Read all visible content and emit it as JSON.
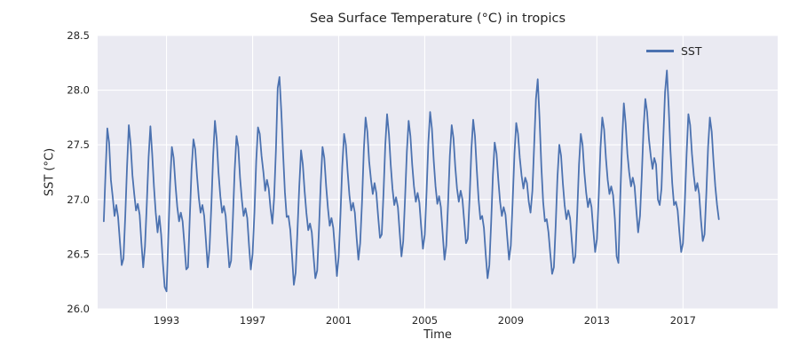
{
  "colors": {
    "line": "#4c72b0",
    "axes_background": "#eaeaf2",
    "grid": "#ffffff",
    "text": "#262626",
    "figure_background": "#ffffff"
  },
  "chart_data": {
    "type": "line",
    "title": "Sea Surface Temperature (°C) in tropics",
    "xlabel": "Time",
    "ylabel": "SST (°C)",
    "xlim": [
      1989.8,
      2021.4
    ],
    "ylim": [
      26.0,
      28.5
    ],
    "grid": true,
    "legend_position": "upper right",
    "xticks": [
      {
        "v": 1993,
        "label": "1993"
      },
      {
        "v": 1997,
        "label": "1997"
      },
      {
        "v": 2001,
        "label": "2001"
      },
      {
        "v": 2005,
        "label": "2005"
      },
      {
        "v": 2009,
        "label": "2009"
      },
      {
        "v": 2013,
        "label": "2013"
      },
      {
        "v": 2017,
        "label": "2017"
      }
    ],
    "yticks": [
      {
        "v": 26.0,
        "label": "26.0"
      },
      {
        "v": 26.5,
        "label": "26.5"
      },
      {
        "v": 27.0,
        "label": "27.0"
      },
      {
        "v": 27.5,
        "label": "27.5"
      },
      {
        "v": 28.0,
        "label": "28.0"
      },
      {
        "v": 28.5,
        "label": "28.5"
      }
    ],
    "series": [
      {
        "name": "SST",
        "unit": "°C",
        "cadence": "monthly",
        "x_start_year": 1990.0833,
        "x_step_years": 0.0833333,
        "values": [
          26.8,
          27.25,
          27.65,
          27.52,
          27.18,
          27.02,
          26.85,
          26.95,
          26.84,
          26.62,
          26.4,
          26.46,
          26.85,
          27.3,
          27.68,
          27.5,
          27.22,
          27.05,
          26.9,
          26.96,
          26.86,
          26.6,
          26.38,
          26.57,
          26.95,
          27.39,
          27.67,
          27.42,
          27.12,
          26.88,
          26.7,
          26.85,
          26.68,
          26.42,
          26.2,
          26.16,
          26.66,
          27.15,
          27.48,
          27.38,
          27.13,
          26.93,
          26.8,
          26.88,
          26.8,
          26.58,
          26.36,
          26.38,
          26.84,
          27.28,
          27.55,
          27.46,
          27.22,
          27.02,
          26.88,
          26.95,
          26.85,
          26.62,
          26.38,
          26.55,
          26.95,
          27.4,
          27.72,
          27.55,
          27.25,
          27.03,
          26.88,
          26.94,
          26.85,
          26.6,
          26.38,
          26.44,
          26.82,
          27.26,
          27.58,
          27.48,
          27.2,
          27.0,
          26.85,
          26.92,
          26.83,
          26.58,
          26.36,
          26.5,
          26.88,
          27.35,
          27.66,
          27.6,
          27.4,
          27.25,
          27.08,
          27.18,
          27.1,
          26.92,
          26.78,
          27.02,
          27.45,
          28.02,
          28.12,
          27.8,
          27.42,
          27.07,
          26.84,
          26.85,
          26.72,
          26.48,
          26.22,
          26.33,
          26.7,
          27.12,
          27.45,
          27.32,
          27.08,
          26.88,
          26.72,
          26.78,
          26.7,
          26.48,
          26.28,
          26.35,
          26.73,
          27.15,
          27.48,
          27.38,
          27.12,
          26.92,
          26.76,
          26.83,
          26.74,
          26.52,
          26.3,
          26.48,
          26.86,
          27.3,
          27.6,
          27.5,
          27.25,
          27.04,
          26.9,
          26.97,
          26.88,
          26.65,
          26.45,
          26.6,
          26.98,
          27.45,
          27.75,
          27.62,
          27.35,
          27.18,
          27.05,
          27.15,
          27.06,
          26.85,
          26.65,
          26.68,
          27.06,
          27.5,
          27.78,
          27.6,
          27.32,
          27.1,
          26.95,
          27.02,
          26.93,
          26.7,
          26.48,
          26.62,
          27.0,
          27.44,
          27.72,
          27.58,
          27.32,
          27.12,
          26.98,
          27.06,
          26.97,
          26.75,
          26.55,
          26.68,
          27.07,
          27.52,
          27.8,
          27.65,
          27.35,
          27.12,
          26.96,
          27.03,
          26.93,
          26.68,
          26.45,
          26.58,
          26.96,
          27.4,
          27.68,
          27.56,
          27.3,
          27.1,
          26.98,
          27.08,
          27.0,
          26.8,
          26.6,
          26.64,
          27.02,
          27.46,
          27.73,
          27.58,
          27.28,
          27.0,
          26.82,
          26.85,
          26.74,
          26.5,
          26.28,
          26.4,
          26.78,
          27.22,
          27.52,
          27.42,
          27.18,
          26.98,
          26.85,
          26.93,
          26.86,
          26.65,
          26.45,
          26.58,
          26.97,
          27.42,
          27.7,
          27.6,
          27.38,
          27.22,
          27.1,
          27.2,
          27.15,
          26.98,
          26.88,
          27.08,
          27.5,
          27.92,
          28.1,
          27.75,
          27.3,
          26.98,
          26.8,
          26.82,
          26.7,
          26.5,
          26.32,
          26.38,
          26.76,
          27.2,
          27.5,
          27.4,
          27.15,
          26.95,
          26.82,
          26.9,
          26.83,
          26.62,
          26.42,
          26.48,
          26.88,
          27.32,
          27.6,
          27.5,
          27.25,
          27.06,
          26.93,
          27.01,
          26.93,
          26.72,
          26.52,
          26.64,
          27.03,
          27.47,
          27.75,
          27.64,
          27.38,
          27.18,
          27.05,
          27.12,
          27.04,
          26.82,
          26.48,
          26.42,
          27.0,
          27.52,
          27.88,
          27.7,
          27.42,
          27.25,
          27.12,
          27.2,
          27.12,
          26.9,
          26.7,
          26.85,
          27.22,
          27.65,
          27.92,
          27.8,
          27.55,
          27.4,
          27.28,
          27.38,
          27.32,
          27.0,
          26.95,
          27.1,
          27.55,
          27.98,
          28.18,
          27.85,
          27.45,
          27.15,
          26.95,
          26.98,
          26.9,
          26.7,
          26.52,
          26.6,
          26.98,
          27.42,
          27.78,
          27.68,
          27.42,
          27.22,
          27.08,
          27.15,
          27.05,
          26.82,
          26.62,
          26.68,
          27.05,
          27.48,
          27.75,
          27.62,
          27.35,
          27.12,
          26.95,
          26.82
        ]
      }
    ]
  }
}
